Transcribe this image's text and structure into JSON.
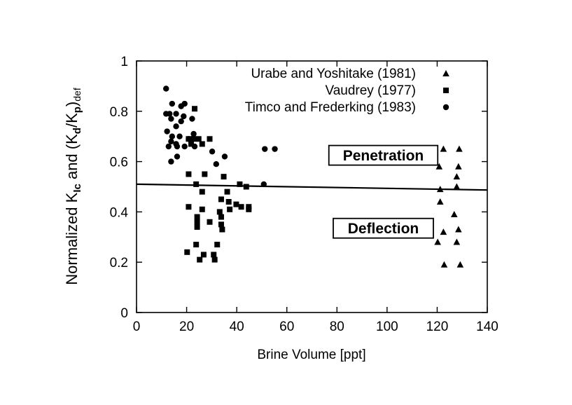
{
  "chart_data": {
    "type": "scatter",
    "xlabel": "Brine Volume [ppt]",
    "ylabel": {
      "prefix": "Normalized K",
      "sub1": "Ic",
      "mid": " and (K",
      "sub2": "d",
      "slash": "/K",
      "sub3": "p",
      "close": ")",
      "sub4": "def"
    },
    "xlim": [
      0,
      140
    ],
    "ylim": [
      0,
      1
    ],
    "xticks": [
      0,
      20,
      40,
      60,
      80,
      100,
      120,
      140
    ],
    "yticks": [
      0,
      0.2,
      0.4,
      0.6,
      0.8,
      1
    ],
    "ytick_labels": [
      "0",
      "0.2",
      "0.4",
      "0.6",
      "0.8",
      "1"
    ],
    "grid": false,
    "legend_position": "top-right",
    "series": [
      {
        "name": "Urabe and Yoshitake (1981)",
        "marker": "triangle",
        "points": [
          [
            122.5,
            0.65
          ],
          [
            128.8,
            0.65
          ],
          [
            120.8,
            0.58
          ],
          [
            128.5,
            0.58
          ],
          [
            127.8,
            0.54
          ],
          [
            121.2,
            0.49
          ],
          [
            127.8,
            0.5
          ],
          [
            121.2,
            0.44
          ],
          [
            126.8,
            0.39
          ],
          [
            122.5,
            0.32
          ],
          [
            128.5,
            0.33
          ],
          [
            120.2,
            0.28
          ],
          [
            127.8,
            0.28
          ],
          [
            122.8,
            0.19
          ],
          [
            129.2,
            0.19
          ]
        ]
      },
      {
        "name": "Vaudrey (1977)",
        "marker": "square",
        "points": [
          [
            23.2,
            0.81
          ],
          [
            20.8,
            0.69
          ],
          [
            22.8,
            0.69
          ],
          [
            24.8,
            0.69
          ],
          [
            29.2,
            0.69
          ],
          [
            21.8,
            0.67
          ],
          [
            26.2,
            0.67
          ],
          [
            20.8,
            0.55
          ],
          [
            27.2,
            0.55
          ],
          [
            34.8,
            0.54
          ],
          [
            23.8,
            0.51
          ],
          [
            41.2,
            0.51
          ],
          [
            43.8,
            0.5
          ],
          [
            26.2,
            0.48
          ],
          [
            36.2,
            0.48
          ],
          [
            33.8,
            0.45
          ],
          [
            36.8,
            0.44
          ],
          [
            39.8,
            0.43
          ],
          [
            41.8,
            0.42
          ],
          [
            44.8,
            0.42
          ],
          [
            20.8,
            0.42
          ],
          [
            26.2,
            0.41
          ],
          [
            33.2,
            0.4
          ],
          [
            37.2,
            0.41
          ],
          [
            44.8,
            0.41
          ],
          [
            24.2,
            0.38
          ],
          [
            33.8,
            0.38
          ],
          [
            24.2,
            0.36
          ],
          [
            29.2,
            0.36
          ],
          [
            33.8,
            0.35
          ],
          [
            24.2,
            0.34
          ],
          [
            34.2,
            0.33
          ],
          [
            23.8,
            0.27
          ],
          [
            32.2,
            0.27
          ],
          [
            20.2,
            0.24
          ],
          [
            25.2,
            0.21
          ],
          [
            26.8,
            0.23
          ],
          [
            30.8,
            0.23
          ],
          [
            31.2,
            0.21
          ]
        ]
      },
      {
        "name": "Timco and Frederking (1983)",
        "marker": "circle",
        "points": [
          [
            11.8,
            0.89
          ],
          [
            14.2,
            0.83
          ],
          [
            17.8,
            0.82
          ],
          [
            19.2,
            0.83
          ],
          [
            11.8,
            0.79
          ],
          [
            13.2,
            0.79
          ],
          [
            15.8,
            0.79
          ],
          [
            18.8,
            0.78
          ],
          [
            13.8,
            0.77
          ],
          [
            17.8,
            0.76
          ],
          [
            22.2,
            0.77
          ],
          [
            15.8,
            0.74
          ],
          [
            12.2,
            0.72
          ],
          [
            22.8,
            0.71
          ],
          [
            14.2,
            0.7
          ],
          [
            17.2,
            0.7
          ],
          [
            20.8,
            0.69
          ],
          [
            22.2,
            0.69
          ],
          [
            13.8,
            0.68
          ],
          [
            15.8,
            0.67
          ],
          [
            12.8,
            0.66
          ],
          [
            16.2,
            0.66
          ],
          [
            19.2,
            0.66
          ],
          [
            23.2,
            0.66
          ],
          [
            30.2,
            0.64
          ],
          [
            16.2,
            0.62
          ],
          [
            35.2,
            0.62
          ],
          [
            13.8,
            0.6
          ],
          [
            31.8,
            0.59
          ],
          [
            51.2,
            0.65
          ],
          [
            55.2,
            0.65
          ],
          [
            50.8,
            0.51
          ]
        ]
      }
    ],
    "trendline": {
      "x": [
        0,
        140
      ],
      "y": [
        0.51,
        0.487
      ]
    },
    "annotations": [
      {
        "text": "Penetration",
        "x": 98.5,
        "y": 0.625
      },
      {
        "text": "Deflection",
        "x": 98.5,
        "y": 0.335
      }
    ]
  }
}
